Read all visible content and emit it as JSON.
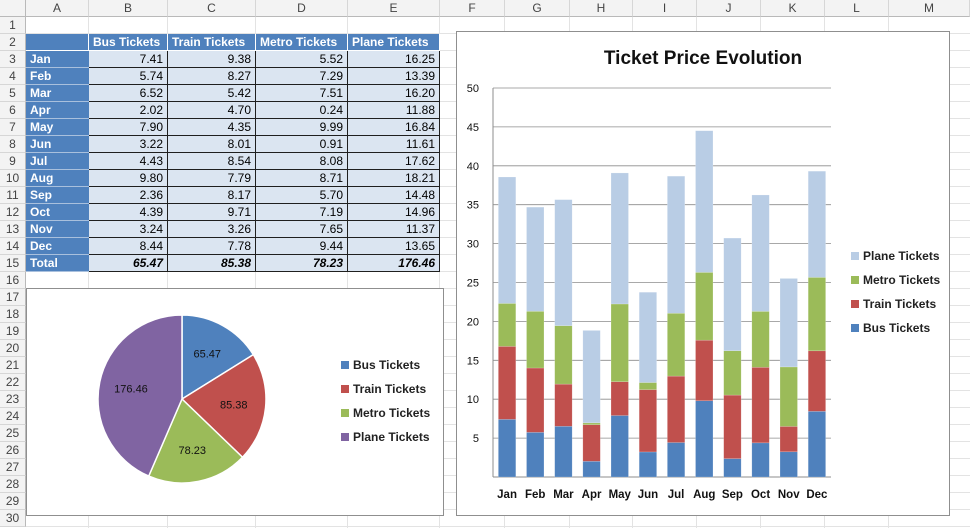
{
  "columns": [
    "A",
    "B",
    "C",
    "D",
    "E",
    "F",
    "G",
    "H",
    "I",
    "J",
    "K",
    "L",
    "M"
  ],
  "rows": [
    1,
    2,
    3,
    4,
    5,
    6,
    7,
    8,
    9,
    10,
    11,
    12,
    13,
    14,
    15,
    16,
    17,
    18,
    19,
    20,
    21,
    22,
    23,
    24,
    25,
    26,
    27,
    28,
    29,
    30
  ],
  "table": {
    "headers": [
      "Bus Tickets",
      "Train Tickets",
      "Metro Tickets",
      "Plane Tickets"
    ],
    "months": [
      "Jan",
      "Feb",
      "Mar",
      "Apr",
      "May",
      "Jun",
      "Jul",
      "Aug",
      "Sep",
      "Oct",
      "Nov",
      "Dec"
    ],
    "values": [
      [
        "7.41",
        "9.38",
        "5.52",
        "16.25"
      ],
      [
        "5.74",
        "8.27",
        "7.29",
        "13.39"
      ],
      [
        "6.52",
        "5.42",
        "7.51",
        "16.20"
      ],
      [
        "2.02",
        "4.70",
        "0.24",
        "11.88"
      ],
      [
        "7.90",
        "4.35",
        "9.99",
        "16.84"
      ],
      [
        "3.22",
        "8.01",
        "0.91",
        "11.61"
      ],
      [
        "4.43",
        "8.54",
        "8.08",
        "17.62"
      ],
      [
        "9.80",
        "7.79",
        "8.71",
        "18.21"
      ],
      [
        "2.36",
        "8.17",
        "5.70",
        "14.48"
      ],
      [
        "4.39",
        "9.71",
        "7.19",
        "14.96"
      ],
      [
        "3.24",
        "3.26",
        "7.65",
        "11.37"
      ],
      [
        "8.44",
        "7.78",
        "9.44",
        "13.65"
      ]
    ],
    "total_label": "Total",
    "totals": [
      "65.47",
      "85.38",
      "78.23",
      "176.46"
    ]
  },
  "colors": {
    "bus": "#4f81bd",
    "train": "#c0504d",
    "metro": "#9bbb59",
    "plane": "#b9cde5",
    "pie_plane": "#8064a2",
    "header_fill": "#4f81bd",
    "value_fill": "#dbe5f1"
  },
  "chart_data": [
    {
      "type": "pie",
      "title": "",
      "categories": [
        "Bus Tickets",
        "Train Tickets",
        "Metro Tickets",
        "Plane Tickets"
      ],
      "values": [
        65.47,
        85.38,
        78.23,
        176.46
      ],
      "labels": [
        "65.47",
        "85.38",
        "78.23",
        "176.46"
      ],
      "legend": [
        "Bus Tickets",
        "Train Tickets",
        "Metro Tickets",
        "Plane Tickets"
      ],
      "legend_position": "right"
    },
    {
      "type": "bar",
      "stacked": true,
      "title": "Ticket Price Evolution",
      "categories": [
        "Jan",
        "Feb",
        "Mar",
        "Apr",
        "May",
        "Jun",
        "Jul",
        "Aug",
        "Sep",
        "Oct",
        "Nov",
        "Dec"
      ],
      "series": [
        {
          "name": "Bus Tickets",
          "values": [
            7.41,
            5.74,
            6.52,
            2.02,
            7.9,
            3.22,
            4.43,
            9.8,
            2.36,
            4.39,
            3.24,
            8.44
          ]
        },
        {
          "name": "Train Tickets",
          "values": [
            9.38,
            8.27,
            5.42,
            4.7,
            4.35,
            8.01,
            8.54,
            7.79,
            8.17,
            9.71,
            3.26,
            7.78
          ]
        },
        {
          "name": "Metro Tickets",
          "values": [
            5.52,
            7.29,
            7.51,
            0.24,
            9.99,
            0.91,
            8.08,
            8.71,
            5.7,
            7.19,
            7.65,
            9.44
          ]
        },
        {
          "name": "Plane Tickets",
          "values": [
            16.25,
            13.39,
            16.2,
            11.88,
            16.84,
            11.61,
            17.62,
            18.21,
            14.48,
            14.96,
            11.37,
            13.65
          ]
        }
      ],
      "ylim": [
        0,
        50
      ],
      "yticks": [
        "5",
        "10",
        "15",
        "20",
        "25",
        "30",
        "35",
        "40",
        "45",
        "50"
      ],
      "grid": true,
      "legend": [
        "Plane Tickets",
        "Metro Tickets",
        "Train Tickets",
        "Bus Tickets"
      ],
      "legend_position": "right"
    }
  ]
}
